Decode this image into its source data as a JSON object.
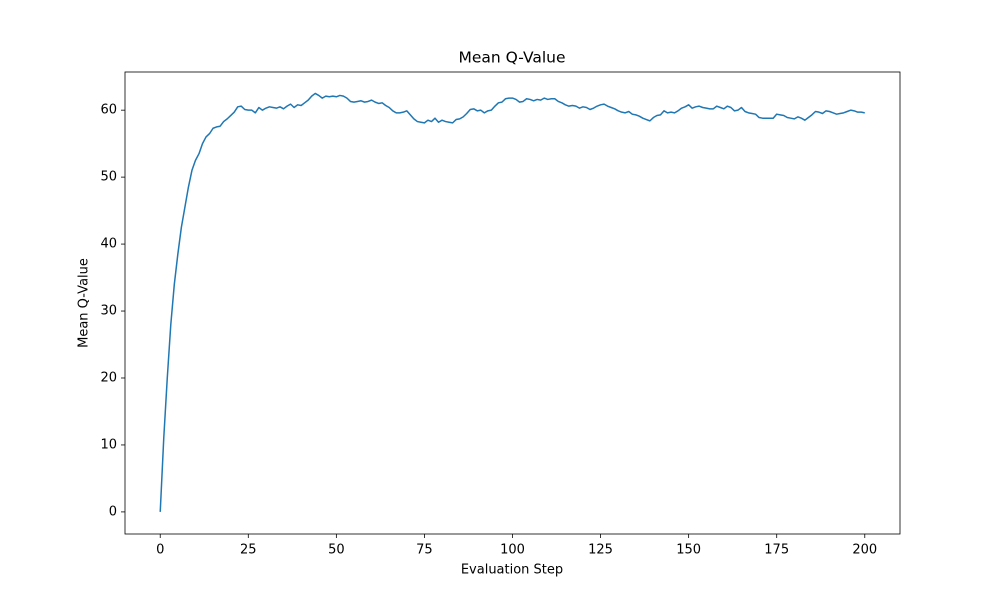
{
  "chart_data": {
    "type": "line",
    "title": "Mean Q-Value",
    "x_label": "Evaluation Step",
    "y_label": "Mean Q-Value",
    "color": "#1f77b4",
    "x": [
      0,
      1,
      2,
      3,
      4,
      5,
      6,
      7,
      8,
      9,
      10,
      11,
      12,
      13,
      14,
      15,
      16,
      17,
      18,
      19,
      20,
      21,
      22,
      23,
      24,
      25,
      26,
      27,
      28,
      29,
      30,
      31,
      32,
      33,
      34,
      35,
      36,
      37,
      38,
      39,
      40,
      41,
      42,
      43,
      44,
      45,
      46,
      47,
      48,
      49,
      50,
      51,
      52,
      53,
      54,
      55,
      56,
      57,
      58,
      59,
      60,
      61,
      62,
      63,
      64,
      65,
      66,
      67,
      68,
      69,
      70,
      71,
      72,
      73,
      74,
      75,
      76,
      77,
      78,
      79,
      80,
      81,
      82,
      83,
      84,
      85,
      86,
      87,
      88,
      89,
      90,
      91,
      92,
      93,
      94,
      95,
      96,
      97,
      98,
      99,
      100,
      101,
      102,
      103,
      104,
      105,
      106,
      107,
      108,
      109,
      110,
      111,
      112,
      113,
      114,
      115,
      116,
      117,
      118,
      119,
      120,
      121,
      122,
      123,
      124,
      125,
      126,
      127,
      128,
      129,
      130,
      131,
      132,
      133,
      134,
      135,
      136,
      137,
      138,
      139,
      140,
      141,
      142,
      143,
      144,
      145,
      146,
      147,
      148,
      149,
      150,
      151,
      152,
      153,
      154,
      155,
      156,
      157,
      158,
      159,
      160,
      161,
      162,
      163,
      164,
      165,
      166,
      167,
      168,
      169,
      170,
      171,
      172,
      173,
      174,
      175,
      176,
      177,
      178,
      179,
      180,
      181,
      182,
      183,
      184,
      185,
      186,
      187,
      188,
      189,
      190,
      191,
      192,
      193,
      194,
      195,
      196,
      197,
      198,
      199,
      200
    ],
    "values": [
      0,
      11,
      20,
      28,
      34,
      38.5,
      42.5,
      45.5,
      48.5,
      51,
      52.5,
      53.5,
      55,
      56,
      56.5,
      57.3,
      57.5,
      57.6,
      58.3,
      58.7,
      59.2,
      59.7,
      60.5,
      60.6,
      60.1,
      60,
      60,
      59.6,
      60.4,
      60,
      60.3,
      60.5,
      60.4,
      60.3,
      60.5,
      60.2,
      60.6,
      60.9,
      60.4,
      60.8,
      60.7,
      61.1,
      61.5,
      62.1,
      62.5,
      62.2,
      61.8,
      62.1,
      62.0,
      62.1,
      62.0,
      62.2,
      62.1,
      61.8,
      61.3,
      61.2,
      61.3,
      61.4,
      61.2,
      61.3,
      61.5,
      61.2,
      61.0,
      61.1,
      60.7,
      60.4,
      59.9,
      59.6,
      59.6,
      59.7,
      59.9,
      59.3,
      58.7,
      58.3,
      58.2,
      58.1,
      58.5,
      58.3,
      58.8,
      58.2,
      58.5,
      58.3,
      58.2,
      58.1,
      58.6,
      58.7,
      59.0,
      59.5,
      60.1,
      60.2,
      59.9,
      60.0,
      59.6,
      59.9,
      60.0,
      60.6,
      61.1,
      61.2,
      61.7,
      61.8,
      61.8,
      61.6,
      61.2,
      61.3,
      61.7,
      61.6,
      61.4,
      61.6,
      61.5,
      61.8,
      61.6,
      61.7,
      61.7,
      61.3,
      61.1,
      60.8,
      60.6,
      60.7,
      60.6,
      60.3,
      60.5,
      60.4,
      60.1,
      60.3,
      60.6,
      60.8,
      60.9,
      60.6,
      60.4,
      60.2,
      59.9,
      59.7,
      59.6,
      59.8,
      59.4,
      59.3,
      59.1,
      58.8,
      58.6,
      58.4,
      58.9,
      59.2,
      59.3,
      59.9,
      59.6,
      59.7,
      59.6,
      59.9,
      60.3,
      60.5,
      60.8,
      60.3,
      60.5,
      60.6,
      60.4,
      60.3,
      60.2,
      60.2,
      60.6,
      60.4,
      60.2,
      60.6,
      60.4,
      59.9,
      60.0,
      60.4,
      59.8,
      59.6,
      59.5,
      59.4,
      58.9,
      58.8,
      58.8,
      58.8,
      58.8,
      59.4,
      59.3,
      59.2,
      58.9,
      58.8,
      58.7,
      59.0,
      58.8,
      58.5,
      58.9,
      59.3,
      59.8,
      59.7,
      59.5,
      59.9,
      59.8,
      59.6,
      59.4,
      59.5,
      59.6,
      59.8,
      60.0,
      59.9,
      59.7,
      59.7,
      59.6
    ],
    "xlim": [
      -10,
      210
    ],
    "xticks": [
      0,
      25,
      50,
      75,
      100,
      125,
      150,
      175,
      200
    ],
    "ylim": [
      -3.3,
      65.7
    ],
    "yticks": [
      0,
      10,
      20,
      30,
      40,
      50,
      60
    ]
  }
}
